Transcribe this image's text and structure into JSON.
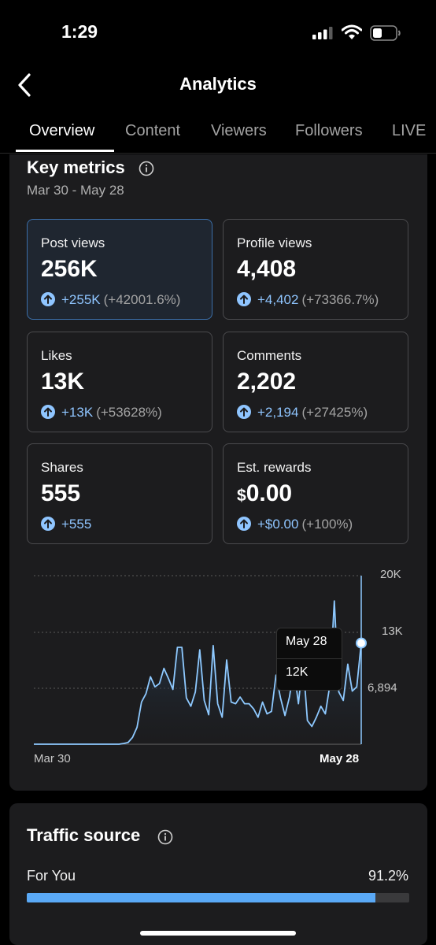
{
  "status": {
    "time": "1:29"
  },
  "header": {
    "title": "Analytics"
  },
  "tabs": [
    {
      "label": "Overview",
      "active": true
    },
    {
      "label": "Content"
    },
    {
      "label": "Viewers"
    },
    {
      "label": "Followers"
    },
    {
      "label": "LIVE"
    }
  ],
  "key_metrics": {
    "title": "Key metrics",
    "date_range": "Mar 30 - May 28",
    "metrics": [
      {
        "label": "Post views",
        "value": "256K",
        "delta": "+255K",
        "pct": "(+42001.6%)",
        "selected": true
      },
      {
        "label": "Profile views",
        "value": "4,408",
        "delta": "+4,402",
        "pct": "(+73366.7%)"
      },
      {
        "label": "Likes",
        "value": "13K",
        "delta": "+13K",
        "pct": "(+53628%)"
      },
      {
        "label": "Comments",
        "value": "2,202",
        "delta": "+2,194",
        "pct": "(+27425%)"
      },
      {
        "label": "Shares",
        "value": "555",
        "delta": "+555",
        "pct": ""
      },
      {
        "label": "Est. rewards",
        "currency": "$",
        "value": "0.00",
        "delta": "+$0.00",
        "pct": "(+100%)"
      }
    ]
  },
  "chart_data": {
    "type": "line",
    "y_ticks": [
      "20K",
      "13K",
      "6,894"
    ],
    "x_labels": [
      "Mar 30",
      "May 28"
    ],
    "ylim": [
      0,
      20000
    ],
    "series": [
      {
        "values": [
          0,
          0,
          0,
          0,
          0,
          0,
          0,
          0,
          0,
          0,
          0,
          0,
          0,
          0,
          0,
          0,
          0,
          0,
          0,
          0,
          80,
          200,
          800,
          2000,
          5000,
          6000,
          8000,
          6800,
          7200,
          9000,
          7800,
          6500,
          11500,
          11500,
          5500,
          4500,
          6200,
          11200,
          5200,
          3500,
          11700,
          4800,
          3200,
          10000,
          5000,
          4800,
          5600,
          4800,
          4800,
          4200,
          3200,
          5000,
          3600,
          3900,
          8200,
          5500,
          3400,
          5600,
          9000,
          4800,
          10000,
          2800,
          2100,
          3200,
          4500,
          3600,
          7000,
          17000,
          6200,
          5200,
          9500,
          6300,
          6800,
          12000
        ]
      }
    ],
    "tooltip": {
      "date": "May 28",
      "value": "12K"
    },
    "colors": {
      "line": "#8ec9ff",
      "fill_top": "#2d4c6b"
    }
  },
  "traffic": {
    "title": "Traffic source",
    "items": [
      {
        "label": "For You",
        "pct_text": "91.2%",
        "fraction": 0.912
      }
    ]
  }
}
